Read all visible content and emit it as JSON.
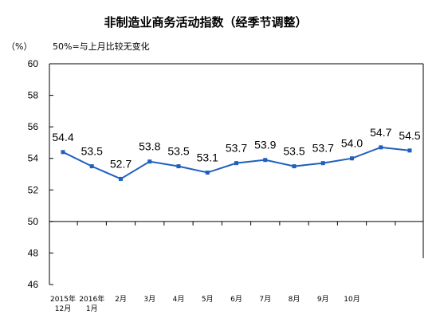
{
  "chart_data": {
    "type": "line",
    "title": "非制造业商务活动指数（经季节调整）",
    "unit_label": "（%）",
    "note": "50%=与上月比较无变化",
    "categories": [
      [
        "2015年",
        "12月"
      ],
      [
        "2016年",
        "1月"
      ],
      [
        "2月"
      ],
      [
        "3月"
      ],
      [
        "4月"
      ],
      [
        "5月"
      ],
      [
        "6月"
      ],
      [
        "7月"
      ],
      [
        "8月"
      ],
      [
        "9月"
      ],
      [
        "10月"
      ],
      [
        ""
      ],
      [
        ""
      ]
    ],
    "values": [
      54.4,
      53.5,
      52.7,
      53.8,
      53.5,
      53.1,
      53.7,
      53.9,
      53.5,
      53.7,
      54.0,
      54.7,
      54.5
    ],
    "data_labels": [
      "54.4",
      "53.5",
      "52.7",
      "53.8",
      "53.5",
      "53.1",
      "53.7",
      "53.9",
      "53.5",
      "53.7",
      "54.0",
      "54.7",
      "54.5"
    ],
    "y_ticks": [
      "60",
      "58",
      "56",
      "54",
      "52",
      "50",
      "48",
      "46"
    ],
    "ylim": [
      46,
      60
    ],
    "reference_value": 50,
    "grid": false,
    "line_color": "#1f5fbf",
    "marker_color": "#1f5fbf"
  }
}
